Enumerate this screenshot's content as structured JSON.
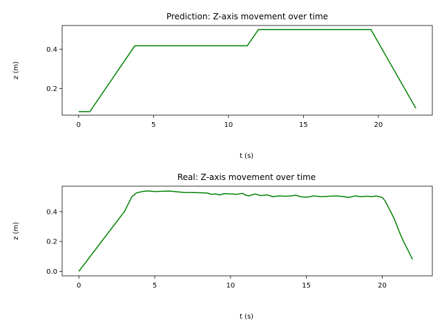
{
  "chart_data": [
    {
      "type": "line",
      "title": "Prediction: Z-axis movement over time",
      "xlabel": "t (s)",
      "ylabel": "z (m)",
      "xlim": [
        -1.1,
        23.6
      ],
      "ylim": [
        0.065,
        0.52
      ],
      "xticks": [
        0,
        5,
        10,
        15,
        20
      ],
      "yticks": [
        0.2,
        0.4
      ],
      "ytick_labels": [
        "0.2",
        "0.4"
      ],
      "color": "#008000",
      "series": [
        {
          "x": [
            0,
            0.75,
            3.75,
            11.25,
            12.0,
            19.5,
            22.5
          ],
          "y": [
            0.083,
            0.083,
            0.417,
            0.417,
            0.5,
            0.5,
            0.1
          ]
        }
      ]
    },
    {
      "type": "line",
      "title": "Real: Z-axis movement over time",
      "xlabel": "t (s)",
      "ylabel": "z (m)",
      "xlim": [
        -1.1,
        23.3
      ],
      "ylim": [
        -0.03,
        0.57
      ],
      "xticks": [
        0,
        5,
        10,
        15,
        20
      ],
      "yticks": [
        0.0,
        0.2,
        0.4
      ],
      "ytick_labels": [
        "0.0",
        "0.2",
        "0.4"
      ],
      "color": "#008000",
      "series": [
        {
          "x": [
            0,
            3.0,
            3.2,
            3.5,
            3.8,
            4.2,
            4.6,
            5.0,
            5.5,
            6.0,
            6.5,
            7.0,
            7.5,
            8.0,
            8.5,
            8.7,
            9.0,
            9.3,
            9.6,
            10.0,
            10.4,
            10.8,
            11.0,
            11.2,
            11.6,
            12.0,
            12.4,
            12.8,
            13.2,
            13.6,
            14.0,
            14.3,
            14.6,
            15.0,
            15.5,
            16.0,
            16.5,
            17.0,
            17.5,
            17.8,
            18.2,
            18.6,
            19.0,
            19.3,
            19.6,
            20.0,
            20.2,
            20.5,
            20.8,
            21.1,
            21.4,
            21.7,
            22.0
          ],
          "y": [
            0.0,
            0.4,
            0.44,
            0.5,
            0.525,
            0.535,
            0.538,
            0.534,
            0.536,
            0.537,
            0.532,
            0.528,
            0.527,
            0.526,
            0.524,
            0.516,
            0.518,
            0.512,
            0.52,
            0.518,
            0.516,
            0.522,
            0.51,
            0.505,
            0.518,
            0.507,
            0.512,
            0.5,
            0.505,
            0.503,
            0.505,
            0.51,
            0.5,
            0.496,
            0.505,
            0.5,
            0.503,
            0.505,
            0.5,
            0.495,
            0.505,
            0.5,
            0.503,
            0.5,
            0.505,
            0.495,
            0.47,
            0.41,
            0.35,
            0.27,
            0.2,
            0.14,
            0.08
          ]
        }
      ]
    }
  ]
}
